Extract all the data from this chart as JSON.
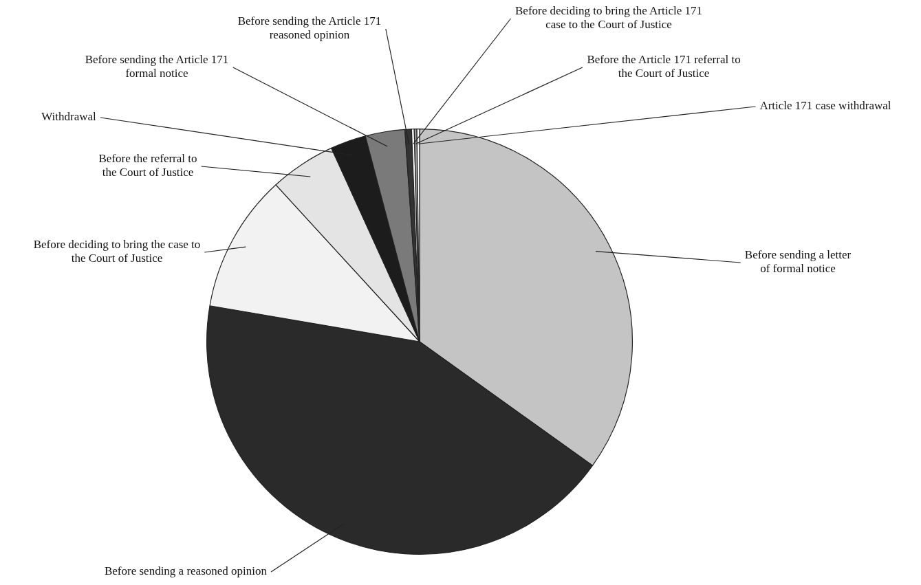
{
  "chart_data": {
    "type": "pie",
    "categories": [
      "Before sending a letter of formal notice",
      "Before sending a reasoned opinion",
      "Before deciding to bring the case to the Court of Justice",
      "Before the referral to the Court of Justice",
      "Withdrawal",
      "Before sending the Article 171 formal notice",
      "Before sending the Article 171 reasoned opinion",
      "Before deciding to bring the Article 171 case to the Court of Justice",
      "Before the Article 171 referral to the Court of Justice",
      "Article 171 case withdrawal"
    ],
    "values": [
      34.9,
      42.8,
      10.5,
      5.0,
      2.7,
      3.0,
      0.5,
      0.2,
      0.2,
      0.2
    ],
    "colors": [
      "#c4c4c4",
      "#2a2a2a",
      "#f2f2f2",
      "#e4e4e4",
      "#1c1c1c",
      "#7a7a7a",
      "#333333",
      "#ffffff",
      "#999999",
      "#ffffff"
    ],
    "legend": false
  }
}
